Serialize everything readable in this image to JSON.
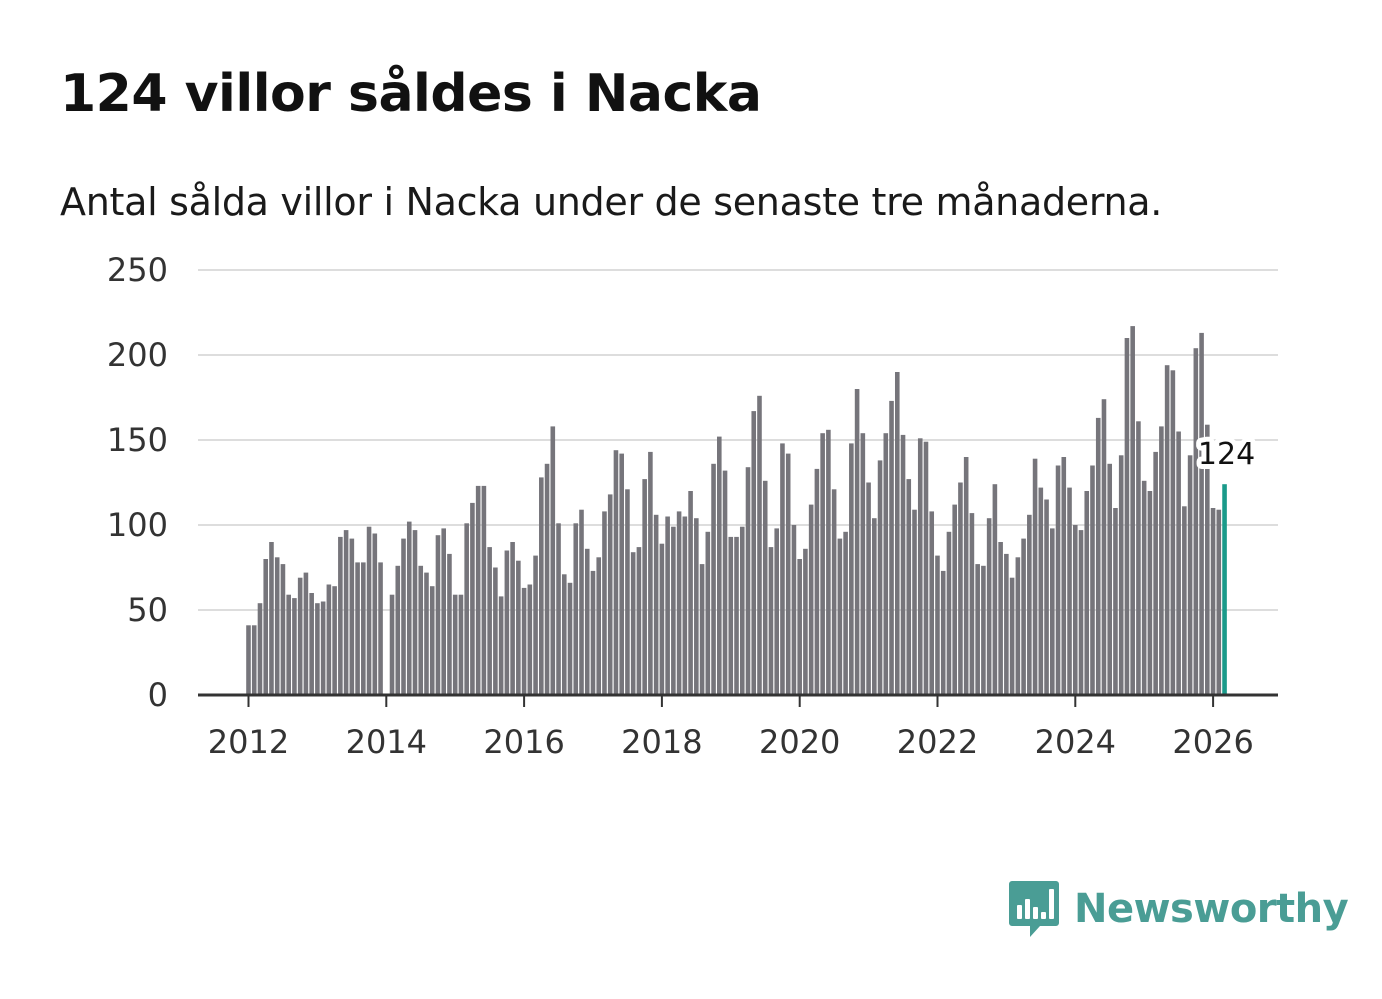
{
  "header": {
    "title": "124 villor såldes i Nacka",
    "subtitle": "Antal sålda villor i Nacka under de senaste tre månaderna."
  },
  "brand": {
    "name": "Newsworthy",
    "icon": "newsworthy-logo-icon",
    "color": "#4a9d95"
  },
  "colors": {
    "bar": "#76757b",
    "highlight": "#1a9a8a",
    "grid": "#dddddd",
    "axis": "#333333"
  },
  "chart_data": {
    "type": "bar",
    "title": "124 villor såldes i Nacka",
    "subtitle": "Antal sålda villor i Nacka under de senaste tre månaderna.",
    "xlabel": "",
    "ylabel": "",
    "ylim": [
      0,
      250
    ],
    "yticks": [
      0,
      50,
      100,
      150,
      200,
      250
    ],
    "xticks": [
      2012,
      2014,
      2016,
      2018,
      2020,
      2022,
      2024,
      2026
    ],
    "x_start": 2012.0,
    "x_step": 0.08333,
    "grid": true,
    "legend": "none",
    "highlight": {
      "label": "124",
      "value": 124
    },
    "values": [
      41,
      41,
      54,
      80,
      90,
      81,
      77,
      59,
      57,
      69,
      72,
      60,
      54,
      55,
      65,
      64,
      93,
      97,
      92,
      78,
      78,
      99,
      95,
      78,
      null,
      59,
      76,
      92,
      102,
      97,
      76,
      72,
      64,
      94,
      98,
      83,
      59,
      59,
      101,
      113,
      123,
      123,
      87,
      75,
      58,
      85,
      90,
      79,
      63,
      65,
      82,
      128,
      136,
      158,
      101,
      71,
      66,
      101,
      109,
      86,
      73,
      81,
      108,
      118,
      144,
      142,
      121,
      84,
      87,
      127,
      143,
      106,
      89,
      105,
      99,
      108,
      105,
      120,
      104,
      77,
      96,
      136,
      152,
      132,
      93,
      93,
      99,
      134,
      167,
      176,
      126,
      87,
      98,
      148,
      142,
      100,
      80,
      86,
      112,
      133,
      154,
      156,
      121,
      92,
      96,
      148,
      180,
      154,
      125,
      104,
      138,
      154,
      173,
      190,
      153,
      127,
      109,
      151,
      149,
      108,
      82,
      73,
      96,
      112,
      125,
      140,
      107,
      77,
      76,
      104,
      124,
      90,
      83,
      69,
      81,
      92,
      106,
      139,
      122,
      115,
      98,
      135,
      140,
      122,
      100,
      97,
      120,
      135,
      163,
      174,
      136,
      110,
      141,
      210,
      217,
      161,
      126,
      120,
      143,
      158,
      194,
      191,
      155,
      111,
      141,
      204,
      213,
      159,
      110,
      109,
      124
    ]
  }
}
